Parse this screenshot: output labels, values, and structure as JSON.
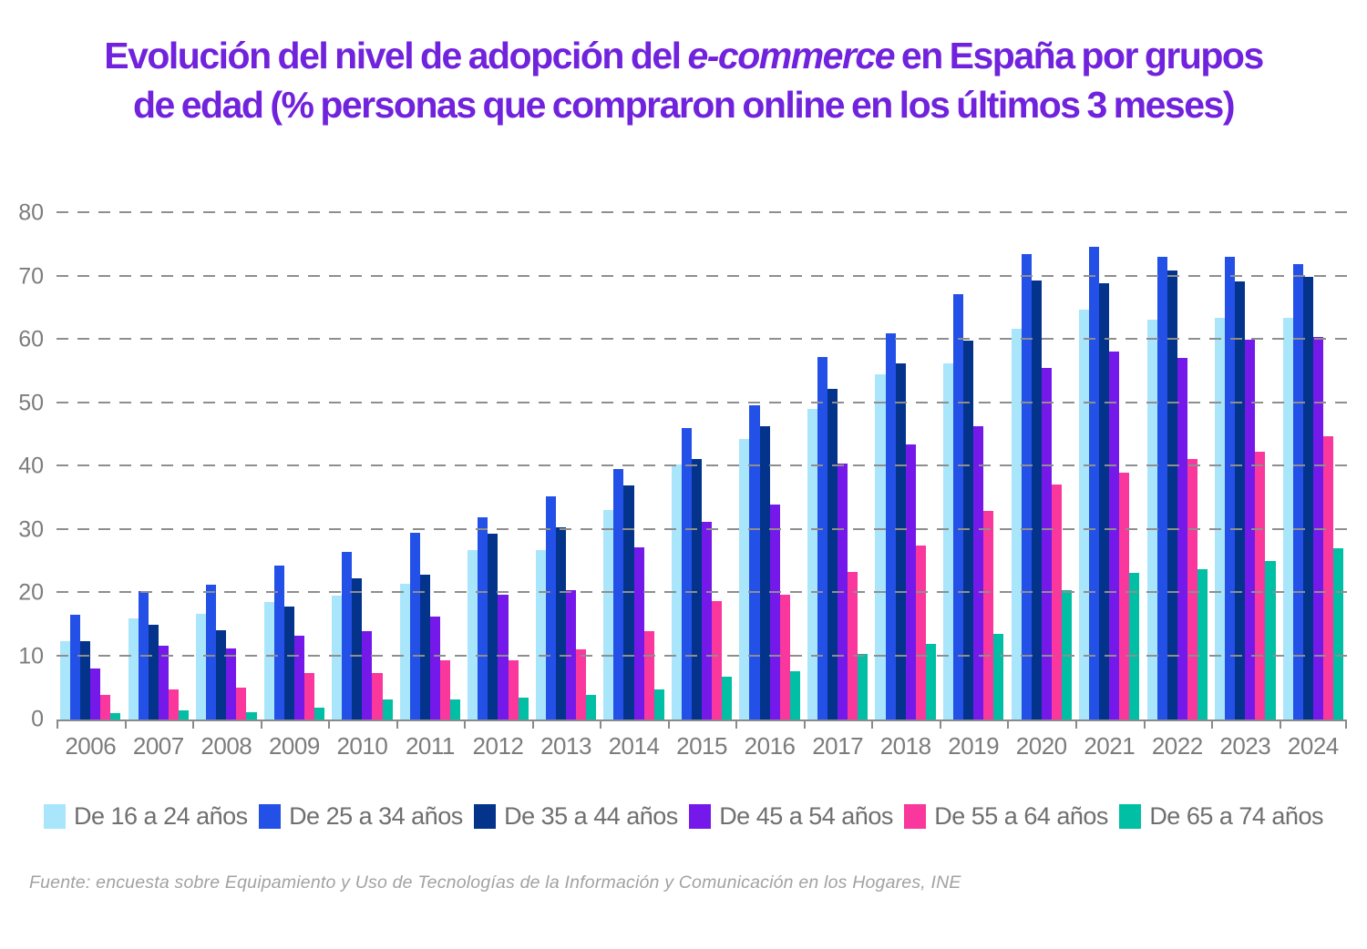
{
  "title": {
    "line1_pre": "Evolución del nivel de adopción del ",
    "line1_italic": "e-commerce",
    "line1_post": " en España por grupos",
    "line2": "de edad (% personas que compraron online en los últimos 3 meses)",
    "color": "#7122DC"
  },
  "footer": "Fuente: encuesta sobre Equipamiento y Uso de Tecnologías de la Información y Comunicación en los Hogares, INE",
  "axis_colors": {
    "grid": "#8e8e8e",
    "axis_line": "#8a8a8a",
    "tick_label": "#7c7c7c",
    "legend_text": "#6f6f6f",
    "footer_text": "#a2a2a2"
  },
  "chart_data": {
    "type": "bar",
    "title": "Evolución del nivel de adopción del e-commerce en España por grupos de edad (% personas que compraron online en los últimos 3 meses)",
    "xlabel": "",
    "ylabel": "",
    "ylim": [
      0,
      80
    ],
    "yticks": [
      0,
      10,
      20,
      30,
      40,
      50,
      60,
      70,
      80
    ],
    "grid": "horizontal-dashed",
    "legend_position": "bottom",
    "categories": [
      "2006",
      "2007",
      "2008",
      "2009",
      "2010",
      "2011",
      "2012",
      "2013",
      "2014",
      "2015",
      "2016",
      "2017",
      "2018",
      "2019",
      "2020",
      "2021",
      "2022",
      "2023",
      "2024"
    ],
    "series": [
      {
        "name": "De 16 a 24 años",
        "color": "#A9E6FB",
        "values": [
          12.4,
          16.0,
          16.7,
          18.6,
          19.6,
          21.5,
          26.8,
          26.8,
          33.1,
          40.3,
          44.3,
          49.0,
          54.5,
          56.2,
          61.8,
          64.7,
          63.1,
          63.5,
          63.5
        ]
      },
      {
        "name": "De 25 a 34 años",
        "color": "#2350E6",
        "values": [
          16.6,
          20.3,
          21.3,
          24.3,
          26.5,
          29.5,
          32.0,
          35.2,
          39.5,
          46.0,
          49.6,
          57.2,
          61.0,
          67.2,
          73.5,
          74.7,
          73.1,
          73.1,
          72.0
        ]
      },
      {
        "name": "De 35 a 44 años",
        "color": "#04338C",
        "values": [
          12.4,
          15.0,
          14.1,
          17.9,
          22.3,
          22.9,
          29.4,
          30.4,
          37.0,
          41.2,
          46.3,
          52.2,
          56.3,
          59.8,
          69.4,
          68.9,
          71.0,
          69.2,
          69.9
        ]
      },
      {
        "name": "De 45 a 54 años",
        "color": "#7519EA",
        "values": [
          8.0,
          11.6,
          11.2,
          13.3,
          14.0,
          16.3,
          19.7,
          20.4,
          27.2,
          31.2,
          34.0,
          40.5,
          43.5,
          46.4,
          55.5,
          58.1,
          57.1,
          60.0,
          60.4
        ]
      },
      {
        "name": "De 55 a 64 años",
        "color": "#F9379D",
        "values": [
          3.9,
          4.7,
          5.0,
          7.4,
          7.4,
          9.4,
          9.4,
          11.1,
          13.9,
          18.7,
          19.7,
          23.3,
          27.5,
          32.9,
          37.1,
          39.0,
          41.2,
          42.3,
          44.8
        ]
      },
      {
        "name": "De 65 a 74 años",
        "color": "#01BFA5",
        "values": [
          1.0,
          1.5,
          1.2,
          1.9,
          3.2,
          3.2,
          3.5,
          3.9,
          4.7,
          6.8,
          7.7,
          10.4,
          11.9,
          13.5,
          20.5,
          23.1,
          23.8,
          25.0,
          27.0
        ]
      }
    ]
  }
}
